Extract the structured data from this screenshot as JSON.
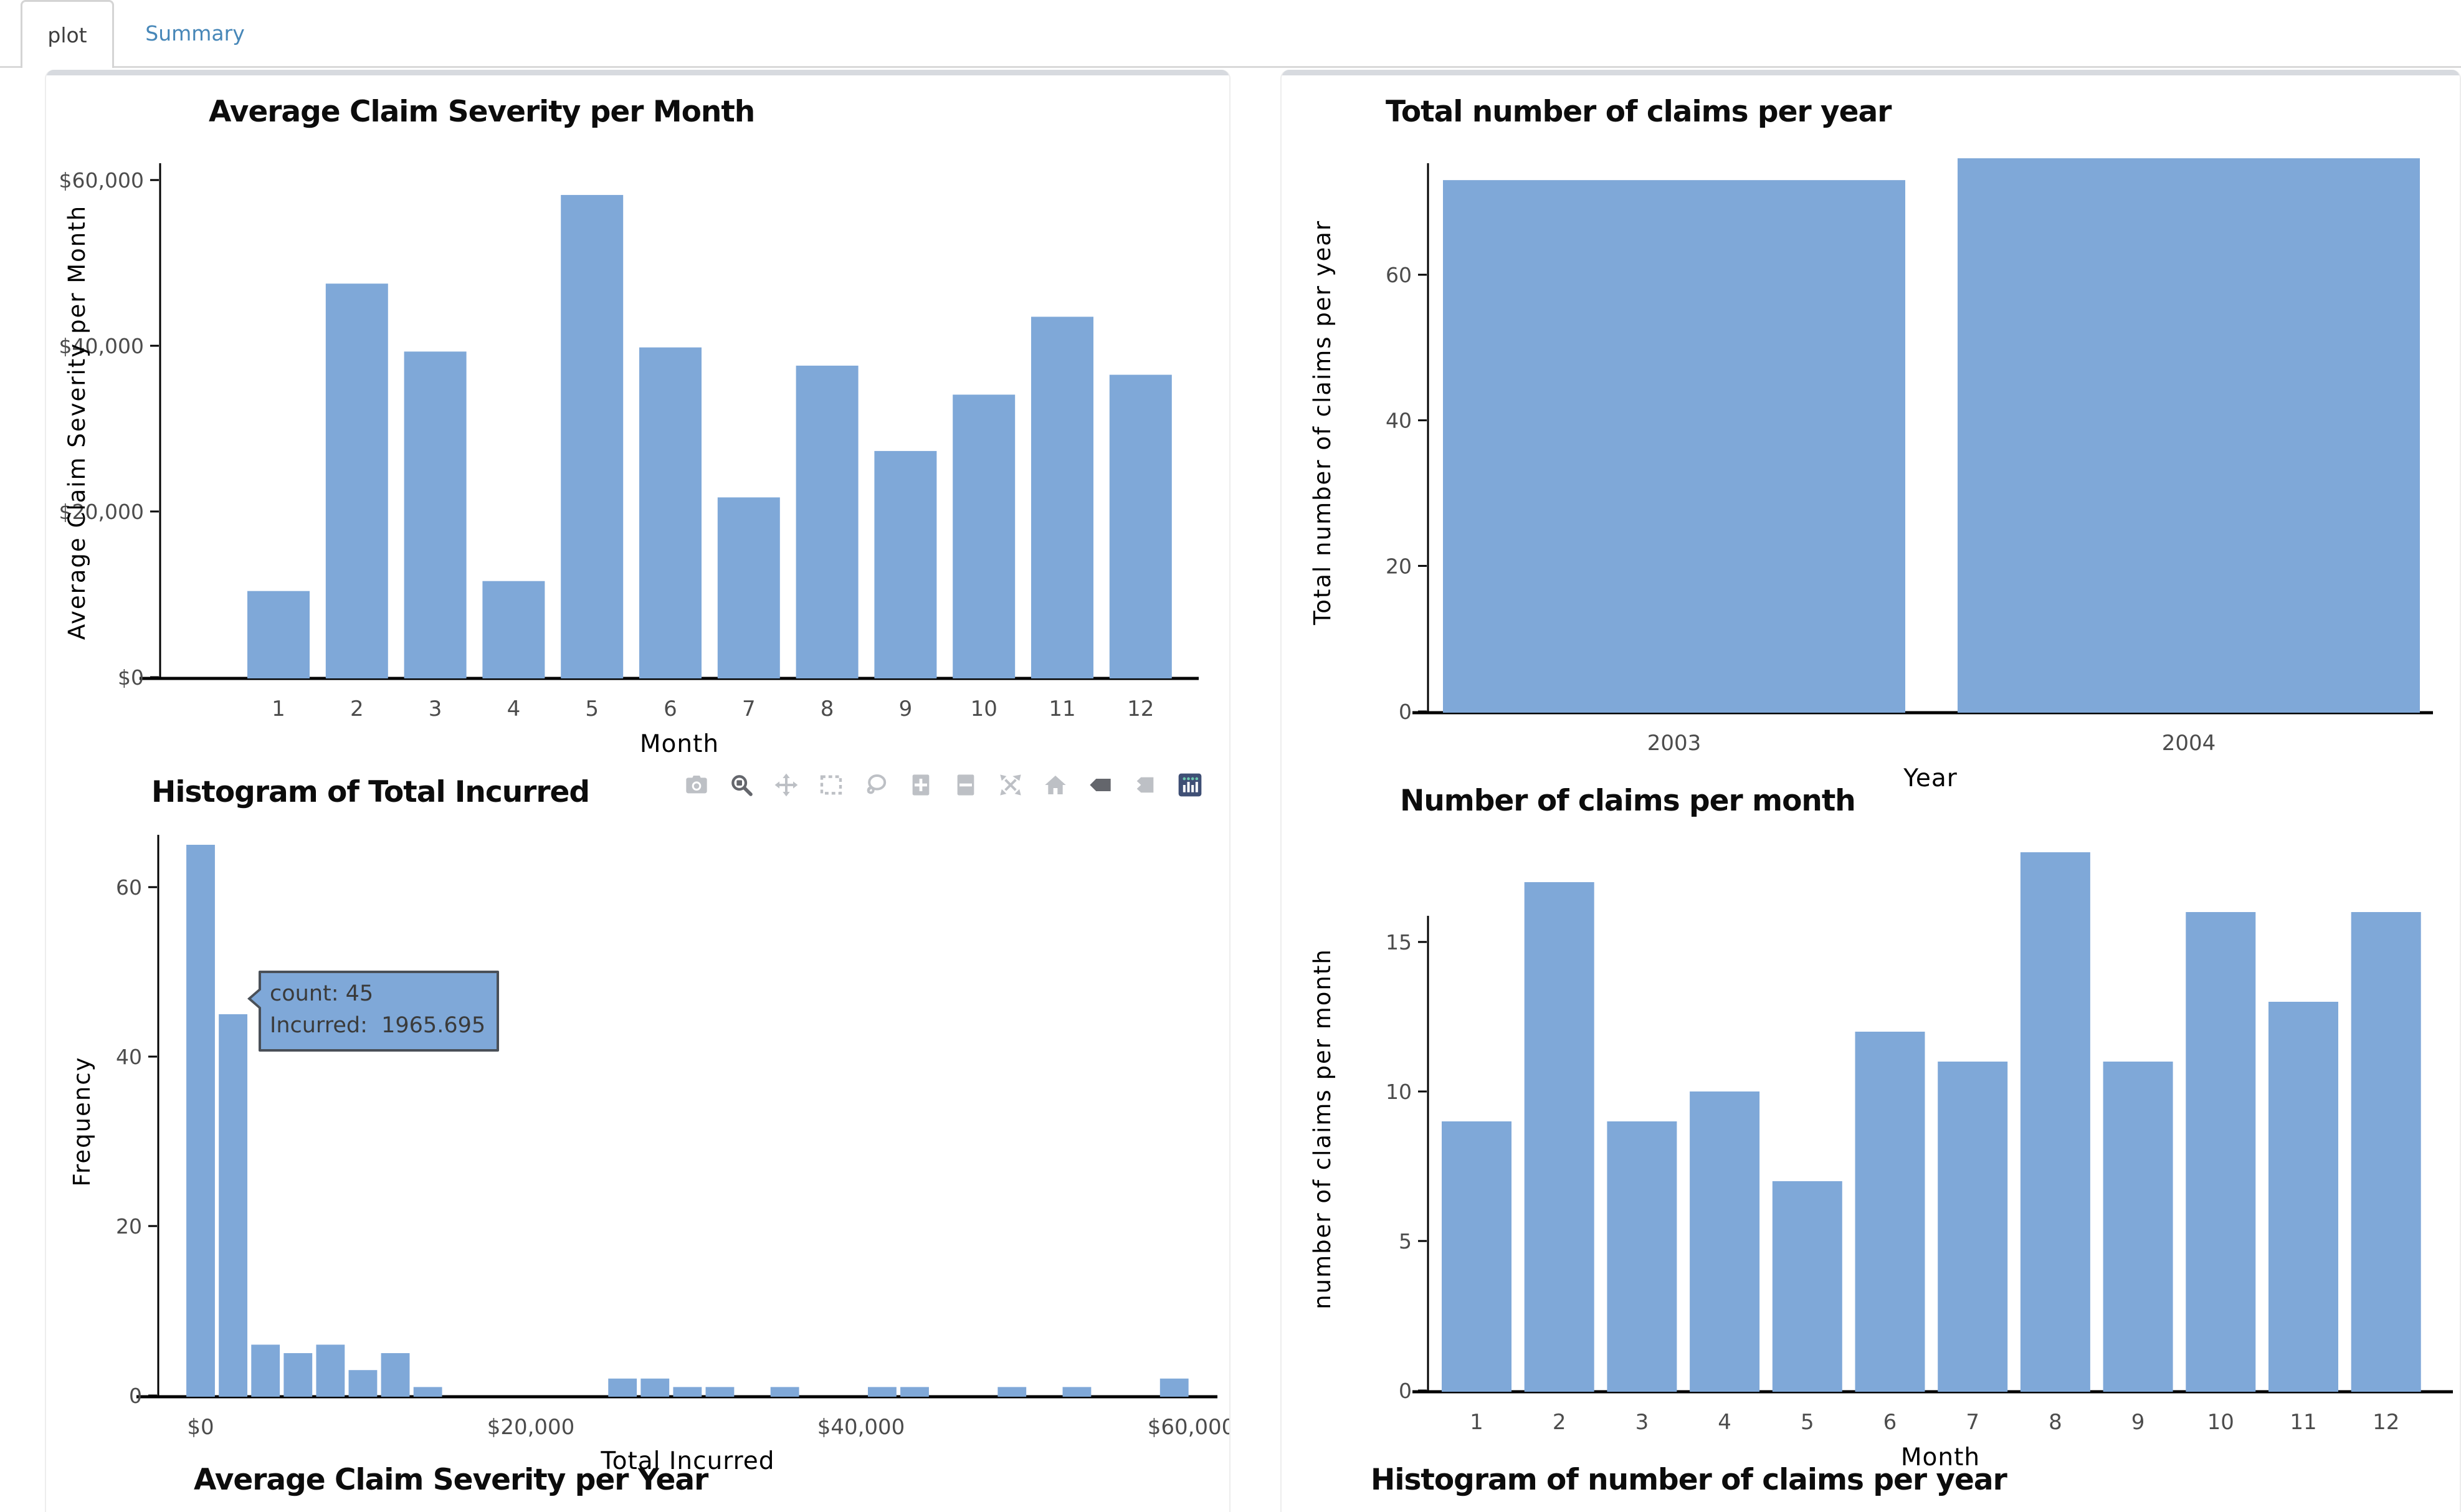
{
  "tabs": {
    "plot_label": "plot",
    "summary_label": "Summary"
  },
  "colors": {
    "bar_fill": "#7fa8d8",
    "link_blue": "#4787b8",
    "axis_line": "#000000",
    "tick_label": "#4c4c4c",
    "title_text": "#0c0c0c",
    "modebar_icon": "#bdc0c5",
    "modebar_icon_active": "#64666c",
    "plotly_logo_bg": "#3f4f75",
    "plotly_logo_dot": "#6ec8af",
    "tooltip_fill": "#7fa8d8",
    "tooltip_border": "#4a5058",
    "panel_top_strip": "#d7dadf"
  },
  "modebar": {
    "icons": [
      "camera",
      "zoom",
      "pan",
      "box-select",
      "lasso",
      "zoom-in",
      "zoom-out",
      "autoscale",
      "home",
      "hover-closest",
      "hover-compare",
      "plotly-logo"
    ]
  },
  "tooltip": {
    "line1": "count: 45",
    "line2": "Incurred:  1965.695"
  },
  "next_charts": {
    "left_title": "Average Claim Severity per Year",
    "right_title": "Histogram of number of claims per year"
  },
  "chart_data": [
    {
      "id": "avg-claim-severity-per-month",
      "type": "bar",
      "title": "Average Claim Severity per Month",
      "xlabel": "Month",
      "ylabel": "Average Claim Severity per Month",
      "categories": [
        "1",
        "2",
        "3",
        "4",
        "5",
        "6",
        "7",
        "8",
        "9",
        "10",
        "11",
        "12"
      ],
      "values": [
        10400,
        47500,
        39300,
        11600,
        58200,
        39800,
        21700,
        37600,
        27300,
        34100,
        43500,
        36500
      ],
      "ytick_values": [
        0,
        20000,
        40000,
        60000
      ],
      "ytick_labels": [
        "$0",
        "$20,000",
        "$40,000",
        "$60,000"
      ],
      "ylim": [
        0,
        62000
      ],
      "grid": false,
      "legend": "none"
    },
    {
      "id": "total-claims-per-year",
      "type": "bar",
      "title": "Total number of claims per year",
      "xlabel": "Year",
      "ylabel": "Total number of claims per year",
      "categories": [
        "2003",
        "2004"
      ],
      "values": [
        73,
        76
      ],
      "ytick_values": [
        0,
        20,
        40,
        60
      ],
      "ytick_labels": [
        "0",
        "20",
        "40",
        "60"
      ],
      "ylim": [
        0,
        77
      ],
      "grid": false,
      "legend": "none"
    },
    {
      "id": "histogram-total-incurred",
      "type": "histogram",
      "title": "Histogram of Total Incurred",
      "xlabel": "Total Incurred",
      "ylabel": "Frequency",
      "bin_width": 1965.695,
      "bins": [
        {
          "x": 0,
          "count": 65
        },
        {
          "x": 1965.695,
          "count": 45
        },
        {
          "x": 3931.39,
          "count": 6
        },
        {
          "x": 5897.085,
          "count": 5
        },
        {
          "x": 7862.78,
          "count": 6
        },
        {
          "x": 9828.475,
          "count": 3
        },
        {
          "x": 11794.17,
          "count": 5
        },
        {
          "x": 13759.865,
          "count": 1
        },
        {
          "x": 25554.035,
          "count": 2
        },
        {
          "x": 27519.73,
          "count": 2
        },
        {
          "x": 29485.425,
          "count": 1
        },
        {
          "x": 31451.12,
          "count": 1
        },
        {
          "x": 35382.51,
          "count": 1
        },
        {
          "x": 41279.595,
          "count": 1
        },
        {
          "x": 43245.29,
          "count": 1
        },
        {
          "x": 49142.375,
          "count": 1
        },
        {
          "x": 53073.765,
          "count": 1
        },
        {
          "x": 58970.85,
          "count": 2
        }
      ],
      "xtick_values": [
        0,
        20000,
        40000,
        60000
      ],
      "xtick_labels": [
        "$0",
        "$20,000",
        "$40,000",
        "$60,000"
      ],
      "ytick_values": [
        0,
        20,
        40,
        60
      ],
      "ytick_labels": [
        "0",
        "20",
        "40",
        "60"
      ],
      "ylim": [
        0,
        66
      ],
      "grid": false,
      "legend": "none",
      "hover": {
        "count": 45,
        "incurred": 1965.695
      }
    },
    {
      "id": "number-of-claims-per-month",
      "type": "bar",
      "title": "Number of claims per month",
      "xlabel": "Month",
      "ylabel": "number of claims per month",
      "categories": [
        "1",
        "2",
        "3",
        "4",
        "5",
        "6",
        "7",
        "8",
        "9",
        "10",
        "11",
        "12"
      ],
      "values": [
        9,
        17,
        9,
        10,
        7,
        12,
        11,
        18,
        11,
        16,
        13,
        16
      ],
      "ytick_values": [
        0,
        5,
        10,
        15
      ],
      "ytick_labels": [
        "0",
        "5",
        "10",
        "15"
      ],
      "ylim": [
        0,
        18.5
      ],
      "grid": false,
      "legend": "none"
    }
  ]
}
